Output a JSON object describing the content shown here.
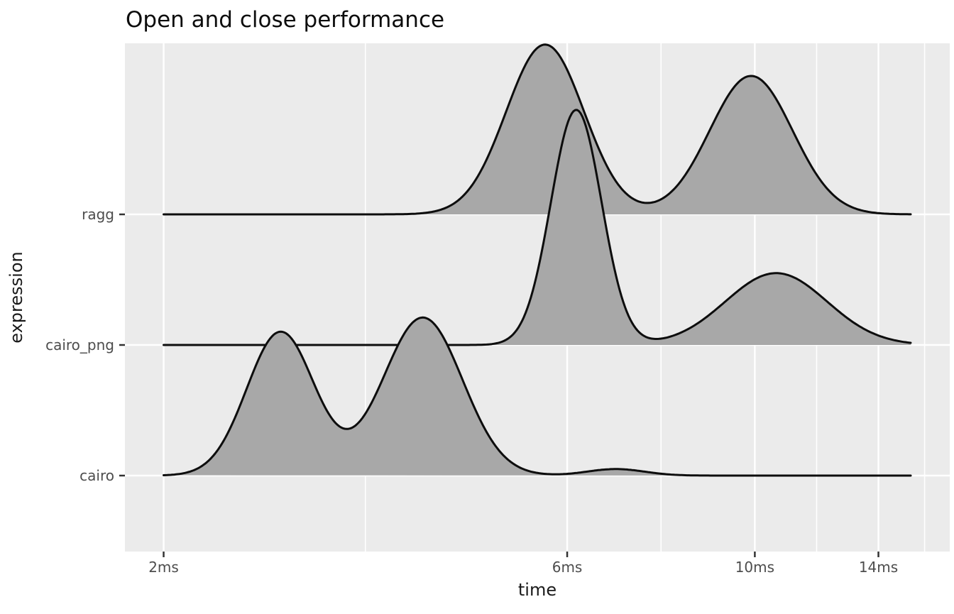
{
  "title": "Open and close performance",
  "chart_data": {
    "type": "ridgeline-density",
    "title": "Open and close performance",
    "xlabel": "time",
    "ylabel": "expression",
    "x_scale": "log10",
    "x_unit": "ms",
    "x_domain_ms": [
      1.8,
      17.0
    ],
    "x_curve_range_ms": [
      2.0,
      15.3
    ],
    "grid": true,
    "legend": "none",
    "x_ticks": [
      {
        "value": 2,
        "label": "2ms"
      },
      {
        "value": 6,
        "label": "6ms"
      },
      {
        "value": 10,
        "label": "10ms"
      },
      {
        "value": 14,
        "label": "14ms"
      }
    ],
    "x_minor_ticks": [
      3.464,
      7.746,
      11.832,
      15.875
    ],
    "y_ticks_top_to_bottom": [
      {
        "label": "ragg"
      },
      {
        "label": "cairo_png"
      },
      {
        "label": "cairo"
      }
    ],
    "series_top_to_bottom": [
      {
        "name": "ragg",
        "modes": [
          {
            "time_ms": 5.65,
            "height": 1.3,
            "sigma_log10": 0.046
          },
          {
            "time_ms": 9.9,
            "height": 1.06,
            "sigma_log10": 0.049
          }
        ]
      },
      {
        "name": "cairo_png",
        "modes": [
          {
            "time_ms": 6.15,
            "height": 1.8,
            "sigma_log10": 0.03
          },
          {
            "time_ms": 10.6,
            "height": 0.55,
            "sigma_log10": 0.06
          }
        ]
      },
      {
        "name": "cairo",
        "modes": [
          {
            "time_ms": 2.75,
            "height": 1.1,
            "sigma_log10": 0.04
          },
          {
            "time_ms": 4.05,
            "height": 1.21,
            "sigma_log10": 0.047
          },
          {
            "time_ms": 6.85,
            "height": 0.05,
            "sigma_log10": 0.034
          }
        ]
      }
    ],
    "colors": {
      "panel_bg": "#EBEBEB",
      "grid": "#FFFFFF",
      "ridge_fill": "#A8A8A8",
      "ridge_line": "#0d0d0d",
      "tick_mark": "#333333",
      "tick_text": "#4D4D4D",
      "title_text": "#0d0d0d",
      "axis_title_text": "#1a1a1a",
      "page_bg": "#FFFFFF"
    }
  }
}
